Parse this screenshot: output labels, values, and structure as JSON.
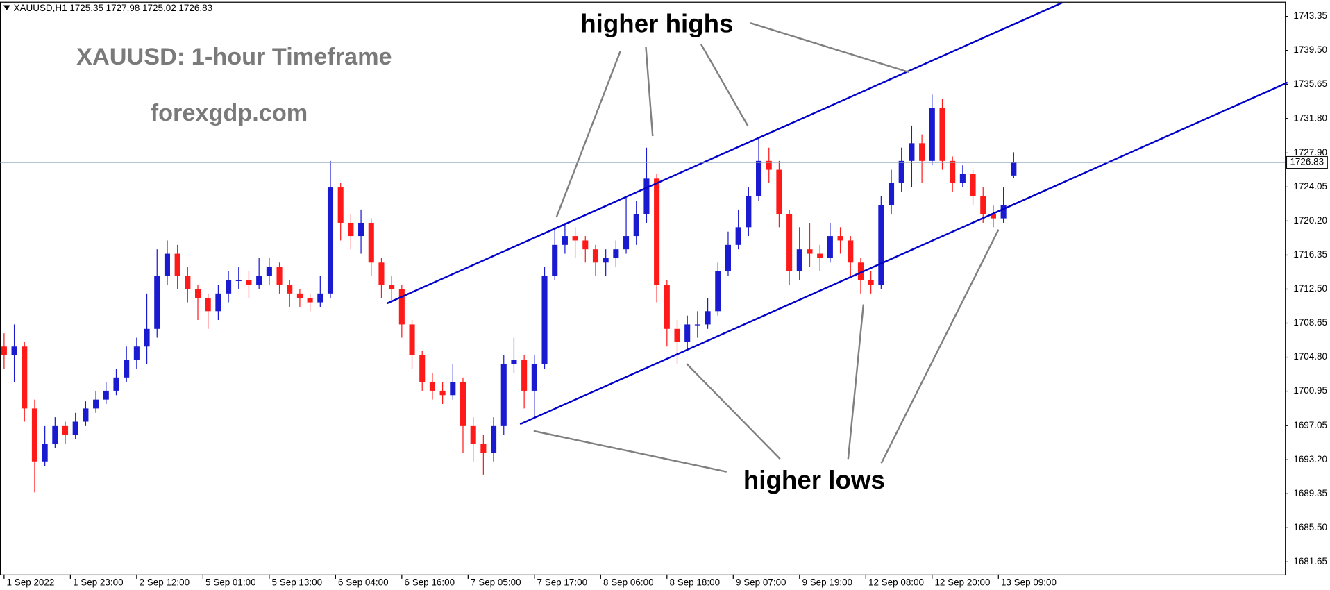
{
  "chart_data": {
    "type": "candlestick",
    "header": "XAUUSD,H1  1725.35 1727.98 1725.02 1726.83",
    "title": "XAUUSD: 1-hour Timeframe",
    "subtitle": "forexgdp.com",
    "annotations": [
      "higher highs",
      "higher lows"
    ],
    "up_color": "#1a1ad0",
    "down_color": "#ff1a1a",
    "x": [
      0,
      2,
      4,
      6,
      8,
      10,
      12,
      14,
      16,
      18,
      20,
      22,
      24,
      26,
      28,
      30,
      32,
      34,
      36,
      38,
      40,
      42,
      44,
      46,
      48,
      50,
      52,
      54,
      56,
      58,
      60,
      62,
      64,
      66,
      68,
      70,
      72,
      74,
      76,
      78,
      80,
      82,
      84,
      86,
      88,
      90,
      92,
      94,
      96,
      98,
      100,
      102,
      104,
      106,
      108,
      110,
      112,
      114,
      116,
      118,
      120,
      122,
      124,
      126,
      128,
      130,
      132,
      134,
      136,
      138,
      140,
      142,
      144,
      146,
      148,
      150,
      152,
      154,
      156,
      158,
      160,
      162,
      164,
      166,
      168,
      170,
      172,
      174,
      176,
      178,
      180,
      182,
      184,
      186,
      188,
      190,
      192,
      194,
      196,
      198
    ],
    "open": [
      1706,
      1705,
      1706,
      1699,
      1693,
      1695,
      1697,
      1696,
      1697.5,
      1699,
      1700,
      1701,
      1702.5,
      1704.5,
      1706,
      1708,
      1714,
      1716.5,
      1714,
      1712.5,
      1711.5,
      1710,
      1712,
      1713.5,
      1713.5,
      1713,
      1714,
      1715,
      1713,
      1712,
      1711.5,
      1711,
      1712,
      1724,
      1720,
      1718.5,
      1720,
      1715.5,
      1713,
      1712.5,
      1708.5,
      1705,
      1702,
      1701,
      1700.5,
      1702,
      1697,
      1695,
      1694,
      1697,
      1704,
      1704.5,
      1701,
      1704,
      1714,
      1717.5,
      1718.5,
      1718,
      1717,
      1715.5,
      1716,
      1717,
      1718.5,
      1721,
      1725,
      1713,
      1708,
      1706.5,
      1708.5,
      1708.5,
      1710,
      1714.5,
      1717.5,
      1719.5,
      1723,
      1727,
      1726,
      1721,
      1714.5,
      1717,
      1716.5,
      1716,
      1718.5,
      1718,
      1715.5,
      1713.5,
      1713,
      1722,
      1724.5,
      1727,
      1729,
      1727,
      1733,
      1727,
      1724.5,
      1725.5,
      1723,
      1721,
      1720.5,
      1725.35
    ],
    "high": [
      1707.5,
      1708.5,
      1706.5,
      1700,
      1697,
      1698,
      1697.5,
      1698.5,
      1699.8,
      1701,
      1702,
      1703.5,
      1706,
      1707,
      1712,
      1717,
      1718,
      1717.5,
      1715,
      1713,
      1712,
      1713,
      1714.5,
      1715,
      1714.5,
      1716,
      1716,
      1715.5,
      1713.5,
      1712.5,
      1712,
      1714,
      1727,
      1724.5,
      1721,
      1721.5,
      1720.5,
      1716,
      1714,
      1713,
      1709,
      1705.5,
      1703,
      1702,
      1704,
      1702.5,
      1698,
      1696,
      1698,
      1705,
      1707,
      1705,
      1705,
      1715,
      1719.5,
      1720,
      1719.5,
      1718.5,
      1717.5,
      1717,
      1718,
      1723,
      1722.5,
      1728.5,
      1725.5,
      1713.5,
      1709,
      1709.5,
      1710,
      1711.5,
      1715.5,
      1719,
      1721.5,
      1724,
      1729.5,
      1728.5,
      1727,
      1721.5,
      1719.5,
      1720,
      1717.5,
      1720,
      1719.5,
      1718.5,
      1716,
      1714.5,
      1723,
      1726,
      1728.5,
      1731,
      1730,
      1734.5,
      1734,
      1727.5,
      1726.5,
      1726,
      1724,
      1722,
      1724,
      1727.98
    ],
    "low": [
      1703.5,
      1702,
      1697.5,
      1689.5,
      1692.5,
      1694.5,
      1695,
      1695.5,
      1697,
      1698.5,
      1699.5,
      1700.5,
      1702,
      1703.5,
      1704,
      1707,
      1713,
      1712.5,
      1711,
      1709,
      1708,
      1709,
      1711,
      1712.5,
      1711.5,
      1712.5,
      1713,
      1712,
      1710.5,
      1710.5,
      1710,
      1710.5,
      1711.5,
      1718,
      1717,
      1716.5,
      1714,
      1711.5,
      1711,
      1707,
      1703.5,
      1701,
      1700,
      1699.5,
      1700,
      1694,
      1693,
      1691.5,
      1693,
      1696,
      1703,
      1699,
      1698,
      1703.5,
      1713.5,
      1716.5,
      1716,
      1715.5,
      1714,
      1714,
      1715,
      1716.5,
      1717.5,
      1720,
      1711,
      1706,
      1704,
      1705.5,
      1707,
      1708,
      1709.5,
      1714,
      1717,
      1718.5,
      1722.5,
      1724.5,
      1719.5,
      1713,
      1713.5,
      1715,
      1714.5,
      1715.5,
      1716.5,
      1714,
      1712,
      1712,
      1712.5,
      1721,
      1723.5,
      1724,
      1724.5,
      1726.5,
      1726,
      1723.5,
      1724,
      1722,
      1720,
      1719.5,
      1720,
      1725.02
    ],
    "close": [
      1705,
      1706,
      1699,
      1693,
      1695,
      1697,
      1696,
      1697.5,
      1699,
      1700,
      1701,
      1702.5,
      1704.5,
      1706,
      1708,
      1714,
      1716.5,
      1714,
      1712.5,
      1711.5,
      1710,
      1712,
      1713.5,
      1713.5,
      1713,
      1714,
      1715,
      1713,
      1712,
      1711.5,
      1711,
      1712,
      1724,
      1720,
      1718.5,
      1720,
      1715.5,
      1713,
      1712.5,
      1708.5,
      1705,
      1702,
      1701,
      1700.5,
      1702,
      1697,
      1695,
      1694,
      1697,
      1704,
      1704.5,
      1701,
      1704,
      1714,
      1717.5,
      1718.5,
      1718,
      1717,
      1715.5,
      1716,
      1717,
      1718.5,
      1721,
      1725,
      1713,
      1708,
      1706.5,
      1708.5,
      1708.5,
      1710,
      1714.5,
      1717.5,
      1719.5,
      1723,
      1727,
      1726,
      1721,
      1714.5,
      1717,
      1716.5,
      1716,
      1718.5,
      1718,
      1715.5,
      1713.5,
      1713,
      1722,
      1724.5,
      1727,
      1729,
      1727,
      1733,
      1727,
      1724.5,
      1725.5,
      1723,
      1721,
      1720.5,
      1722,
      1726.83
    ],
    "last_price": 1726.83,
    "xlim": [
      -0.8,
      251.2
    ],
    "xticks": [
      {
        "value": 0,
        "label": "1 Sep 2022"
      },
      {
        "value": 13,
        "label": "1 Sep 23:00"
      },
      {
        "value": 26,
        "label": "2 Sep 12:00"
      },
      {
        "value": 39,
        "label": "5 Sep 01:00"
      },
      {
        "value": 52,
        "label": "5 Sep 13:00"
      },
      {
        "value": 65,
        "label": "6 Sep 04:00"
      },
      {
        "value": 78,
        "label": "6 Sep 16:00"
      },
      {
        "value": 91,
        "label": "7 Sep 05:00"
      },
      {
        "value": 104,
        "label": "7 Sep 17:00"
      },
      {
        "value": 117,
        "label": "8 Sep 06:00"
      },
      {
        "value": 130,
        "label": "8 Sep 18:00"
      },
      {
        "value": 143,
        "label": "9 Sep 07:00"
      },
      {
        "value": 156,
        "label": "9 Sep 19:00"
      },
      {
        "value": 169,
        "label": "12 Sep 08:00"
      },
      {
        "value": 182,
        "label": "12 Sep 20:00"
      },
      {
        "value": 195,
        "label": "13 Sep 09:00"
      }
    ],
    "ylim": [
      1680.2,
      1745.0
    ],
    "yticks": [
      1743.35,
      {
        "value": 1739.5,
        "label": "1739.50"
      },
      1735.65,
      {
        "value": 1731.8,
        "label": "1731.80"
      },
      {
        "value": 1727.9,
        "label": "1727.90"
      },
      1724.05,
      {
        "value": 1720.2,
        "label": "1720.20"
      },
      1716.35,
      {
        "value": 1712.5,
        "label": "1712.50"
      },
      1708.65,
      {
        "value": 1704.8,
        "label": "1704.80"
      },
      1700.95,
      1697.05,
      {
        "value": 1693.2,
        "label": "1693.20"
      },
      1689.35,
      {
        "value": 1685.5,
        "label": "1685.50"
      },
      1681.65
    ],
    "grid": false
  }
}
